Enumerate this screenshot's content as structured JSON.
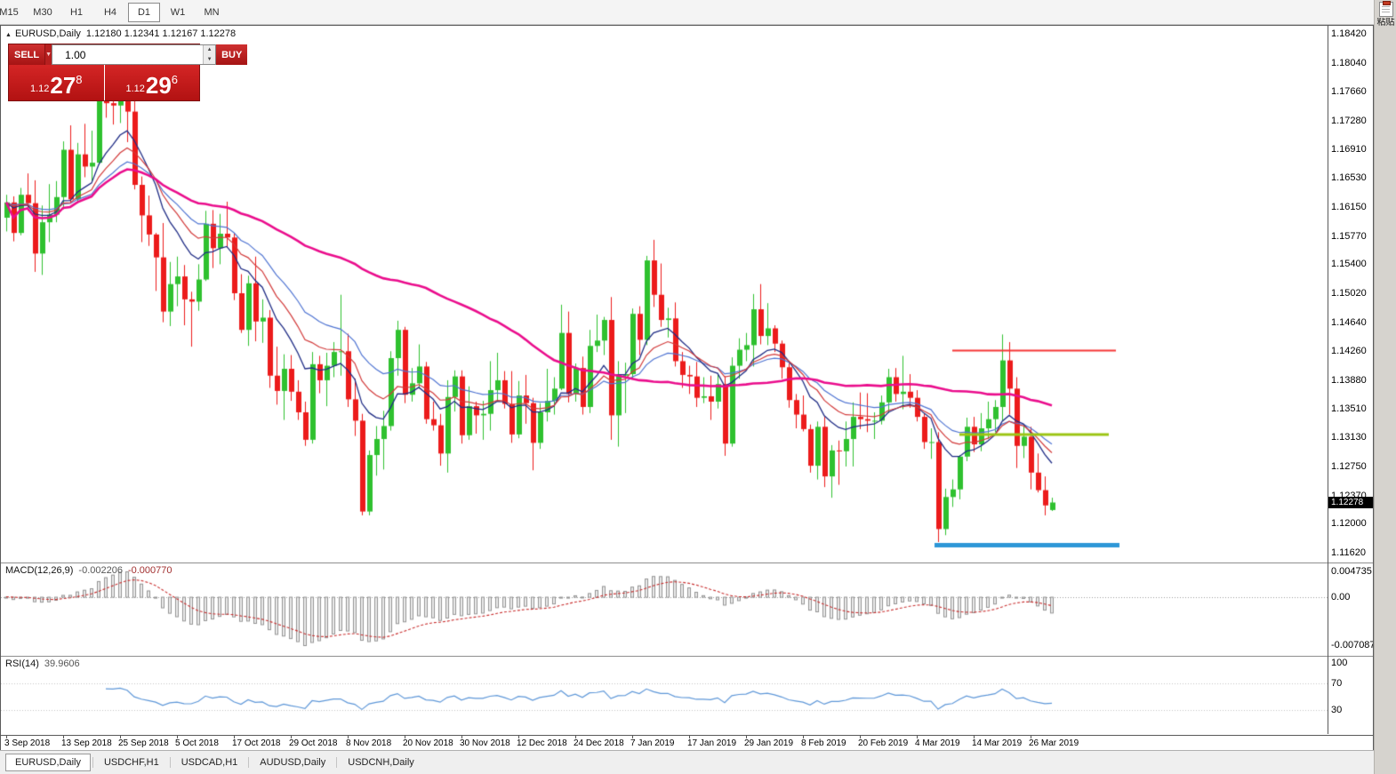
{
  "toolbar": {
    "timeframes": [
      "M15",
      "M30",
      "H1",
      "H4",
      "D1",
      "W1",
      "MN"
    ],
    "active": "D1"
  },
  "right_strip": {
    "paste_label": "粘贴"
  },
  "chart_header": {
    "symbol_period": "EURUSD,Daily",
    "ohlc": "1.12180 1.12341 1.12167 1.12278"
  },
  "trade_panel": {
    "sell_label": "SELL",
    "buy_label": "BUY",
    "volume": "1.00",
    "sell_price_prefix": "1.12",
    "sell_price_big": "27",
    "sell_price_sup": "8",
    "buy_price_prefix": "1.12",
    "buy_price_big": "29",
    "buy_price_sup": "6"
  },
  "indicators": {
    "macd": {
      "title": "MACD(12,26,9)",
      "value": "-0.002206",
      "signal": "-0.000770",
      "scale_labels": [
        "0.004735",
        "0.00",
        "-0.007087"
      ]
    },
    "rsi": {
      "title": "RSI(14)",
      "value": "39.9606",
      "scale_labels": [
        "100",
        "70",
        "30"
      ],
      "levels": [
        70,
        30
      ]
    }
  },
  "price_scale_labels": [
    "1.18420",
    "1.18040",
    "1.17660",
    "1.17280",
    "1.16910",
    "1.16530",
    "1.16150",
    "1.15770",
    "1.15400",
    "1.15020",
    "1.14640",
    "1.14260",
    "1.13880",
    "1.13510",
    "1.13130",
    "1.12750",
    "1.12370",
    "1.12000",
    "1.11620"
  ],
  "current_price_marker": {
    "label": "1.12278",
    "price": 1.12278
  },
  "date_labels": [
    {
      "text": "3 Sep 2018",
      "bar": 0
    },
    {
      "text": "13 Sep 2018",
      "bar": 8
    },
    {
      "text": "25 Sep 2018",
      "bar": 16
    },
    {
      "text": "5 Oct 2018",
      "bar": 24
    },
    {
      "text": "17 Oct 2018",
      "bar": 32
    },
    {
      "text": "29 Oct 2018",
      "bar": 40
    },
    {
      "text": "8 Nov 2018",
      "bar": 48
    },
    {
      "text": "20 Nov 2018",
      "bar": 56
    },
    {
      "text": "30 Nov 2018",
      "bar": 64
    },
    {
      "text": "12 Dec 2018",
      "bar": 72
    },
    {
      "text": "24 Dec 2018",
      "bar": 80
    },
    {
      "text": "7 Jan 2019",
      "bar": 88
    },
    {
      "text": "17 Jan 2019",
      "bar": 96
    },
    {
      "text": "29 Jan 2019",
      "bar": 104
    },
    {
      "text": "8 Feb 2019",
      "bar": 112
    },
    {
      "text": "20 Feb 2019",
      "bar": 120
    },
    {
      "text": "4 Mar 2019",
      "bar": 128
    },
    {
      "text": "14 Mar 2019",
      "bar": 136
    },
    {
      "text": "26 Mar 2019",
      "bar": 144
    }
  ],
  "tabs": [
    {
      "label": "EURUSD,Daily",
      "active": true
    },
    {
      "label": "USDCHF,H1",
      "active": false
    },
    {
      "label": "USDCAD,H1",
      "active": false
    },
    {
      "label": "AUDUSD,Daily",
      "active": false
    },
    {
      "label": "USDCNH,Daily",
      "active": false
    }
  ],
  "chart_data": {
    "type": "candlestick",
    "symbol": "EURUSD",
    "timeframe": "Daily",
    "price_axis": {
      "max": 1.1842,
      "min": 1.1162,
      "tick_step": 0.0038
    },
    "colors": {
      "up": "#2fc12f",
      "down": "#ec1b1b"
    },
    "candles": [
      [
        1.1601,
        1.1631,
        1.1583,
        1.1621
      ],
      [
        1.1621,
        1.1629,
        1.157,
        1.1581
      ],
      [
        1.1581,
        1.164,
        1.1578,
        1.1631
      ],
      [
        1.1631,
        1.1659,
        1.161,
        1.162
      ],
      [
        1.162,
        1.165,
        1.153,
        1.1554
      ],
      [
        1.1554,
        1.1617,
        1.1526,
        1.1595
      ],
      [
        1.1595,
        1.1645,
        1.1569,
        1.1605
      ],
      [
        1.1605,
        1.1649,
        1.1595,
        1.1628
      ],
      [
        1.1628,
        1.1701,
        1.1612,
        1.169
      ],
      [
        1.169,
        1.1722,
        1.162,
        1.1625
      ],
      [
        1.1625,
        1.1699,
        1.162,
        1.1684
      ],
      [
        1.1684,
        1.1724,
        1.1654,
        1.1668
      ],
      [
        1.1668,
        1.1715,
        1.1649,
        1.1673
      ],
      [
        1.1673,
        1.1785,
        1.167,
        1.1779
      ],
      [
        1.1779,
        1.1804,
        1.1732,
        1.1751
      ],
      [
        1.1751,
        1.1815,
        1.1723,
        1.1748
      ],
      [
        1.1748,
        1.1789,
        1.1725,
        1.1766
      ],
      [
        1.1766,
        1.1798,
        1.17,
        1.174
      ],
      [
        1.174,
        1.1755,
        1.1638,
        1.1644
      ],
      [
        1.1644,
        1.1655,
        1.1569,
        1.1604
      ],
      [
        1.1604,
        1.163,
        1.1564,
        1.1579
      ],
      [
        1.1579,
        1.1581,
        1.1505,
        1.1549
      ],
      [
        1.1549,
        1.1594,
        1.1464,
        1.1478
      ],
      [
        1.1478,
        1.1543,
        1.1459,
        1.1514
      ],
      [
        1.1514,
        1.155,
        1.1485,
        1.1524
      ],
      [
        1.1524,
        1.1539,
        1.146,
        1.1494
      ],
      [
        1.1494,
        1.1504,
        1.1432,
        1.1491
      ],
      [
        1.1491,
        1.154,
        1.1479,
        1.152
      ],
      [
        1.152,
        1.161,
        1.1518,
        1.1593
      ],
      [
        1.1593,
        1.1611,
        1.1535,
        1.1561
      ],
      [
        1.1561,
        1.1606,
        1.154,
        1.158
      ],
      [
        1.158,
        1.1622,
        1.1562,
        1.1575
      ],
      [
        1.1575,
        1.1581,
        1.1493,
        1.1502
      ],
      [
        1.1502,
        1.1527,
        1.145,
        1.1454
      ],
      [
        1.1454,
        1.1525,
        1.1433,
        1.1515
      ],
      [
        1.1515,
        1.155,
        1.1439,
        1.1465
      ],
      [
        1.1465,
        1.1494,
        1.1437,
        1.147
      ],
      [
        1.147,
        1.148,
        1.1378,
        1.1394
      ],
      [
        1.1394,
        1.1432,
        1.1356,
        1.1374
      ],
      [
        1.1374,
        1.1422,
        1.1336,
        1.1403
      ],
      [
        1.1403,
        1.1421,
        1.1361,
        1.1373
      ],
      [
        1.1373,
        1.1388,
        1.1336,
        1.1346
      ],
      [
        1.1346,
        1.136,
        1.1302,
        1.131
      ],
      [
        1.131,
        1.1425,
        1.1305,
        1.1409
      ],
      [
        1.1409,
        1.142,
        1.1371,
        1.1388
      ],
      [
        1.1388,
        1.1424,
        1.1354,
        1.1407
      ],
      [
        1.1407,
        1.1438,
        1.1392,
        1.1425
      ],
      [
        1.1425,
        1.15,
        1.1394,
        1.1426
      ],
      [
        1.1426,
        1.1449,
        1.1353,
        1.1363
      ],
      [
        1.1363,
        1.139,
        1.1315,
        1.1335
      ],
      [
        1.1335,
        1.1344,
        1.1211,
        1.1216
      ],
      [
        1.1216,
        1.1296,
        1.1211,
        1.129
      ],
      [
        1.129,
        1.1328,
        1.1263,
        1.1311
      ],
      [
        1.1311,
        1.1348,
        1.1271,
        1.1328
      ],
      [
        1.1328,
        1.1426,
        1.1322,
        1.1417
      ],
      [
        1.1417,
        1.1466,
        1.1394,
        1.1454
      ],
      [
        1.1454,
        1.1458,
        1.1358,
        1.1369
      ],
      [
        1.1369,
        1.1404,
        1.136,
        1.1384
      ],
      [
        1.1384,
        1.1435,
        1.1377,
        1.1406
      ],
      [
        1.1406,
        1.1412,
        1.1331,
        1.1337
      ],
      [
        1.1337,
        1.136,
        1.1322,
        1.1329
      ],
      [
        1.1329,
        1.1344,
        1.1276,
        1.1292
      ],
      [
        1.1292,
        1.1388,
        1.1267,
        1.1366
      ],
      [
        1.1366,
        1.1401,
        1.1347,
        1.1393
      ],
      [
        1.1393,
        1.1401,
        1.1305,
        1.1316
      ],
      [
        1.1316,
        1.138,
        1.131,
        1.1354
      ],
      [
        1.1354,
        1.136,
        1.1318,
        1.1342
      ],
      [
        1.1342,
        1.1361,
        1.131,
        1.1344
      ],
      [
        1.1344,
        1.1413,
        1.1322,
        1.1375
      ],
      [
        1.1375,
        1.1424,
        1.136,
        1.1388
      ],
      [
        1.1388,
        1.14,
        1.1351,
        1.1357
      ],
      [
        1.1357,
        1.14,
        1.1306,
        1.1317
      ],
      [
        1.1317,
        1.1387,
        1.1312,
        1.1368
      ],
      [
        1.1368,
        1.1395,
        1.1331,
        1.1358
      ],
      [
        1.1358,
        1.1365,
        1.127,
        1.1306
      ],
      [
        1.1306,
        1.1358,
        1.1298,
        1.1346
      ],
      [
        1.1346,
        1.1403,
        1.1334,
        1.1361
      ],
      [
        1.1361,
        1.1392,
        1.1343,
        1.1377
      ],
      [
        1.1377,
        1.1487,
        1.1375,
        1.145
      ],
      [
        1.145,
        1.1478,
        1.1359,
        1.137
      ],
      [
        1.137,
        1.141,
        1.136,
        1.1404
      ],
      [
        1.1404,
        1.1419,
        1.1343,
        1.1353
      ],
      [
        1.1353,
        1.1454,
        1.1345,
        1.1433
      ],
      [
        1.1433,
        1.1474,
        1.1425,
        1.144
      ],
      [
        1.144,
        1.1471,
        1.1421,
        1.1467
      ],
      [
        1.1467,
        1.1497,
        1.131,
        1.1342
      ],
      [
        1.1342,
        1.1413,
        1.1301,
        1.1394
      ],
      [
        1.1394,
        1.1411,
        1.1345,
        1.1396
      ],
      [
        1.1396,
        1.1482,
        1.139,
        1.1475
      ],
      [
        1.1475,
        1.1485,
        1.1421,
        1.1441
      ],
      [
        1.1441,
        1.1551,
        1.1434,
        1.1545
      ],
      [
        1.1545,
        1.1572,
        1.1484,
        1.15
      ],
      [
        1.15,
        1.1541,
        1.1458,
        1.1467
      ],
      [
        1.1467,
        1.1483,
        1.1444,
        1.1469
      ],
      [
        1.1469,
        1.149,
        1.1406,
        1.1413
      ],
      [
        1.1413,
        1.1425,
        1.1378,
        1.1395
      ],
      [
        1.1395,
        1.1407,
        1.137,
        1.1393
      ],
      [
        1.1393,
        1.1412,
        1.1353,
        1.1365
      ],
      [
        1.1365,
        1.1392,
        1.1358,
        1.1367
      ],
      [
        1.1367,
        1.1394,
        1.1336,
        1.136
      ],
      [
        1.136,
        1.1395,
        1.1351,
        1.1383
      ],
      [
        1.1383,
        1.1393,
        1.1289,
        1.1305
      ],
      [
        1.1305,
        1.1418,
        1.1301,
        1.1407
      ],
      [
        1.1407,
        1.1443,
        1.139,
        1.1428
      ],
      [
        1.1428,
        1.145,
        1.1413,
        1.1434
      ],
      [
        1.1434,
        1.1501,
        1.1406,
        1.1481
      ],
      [
        1.1481,
        1.1514,
        1.1435,
        1.1446
      ],
      [
        1.1446,
        1.1489,
        1.1434,
        1.1456
      ],
      [
        1.1456,
        1.146,
        1.1425,
        1.1436
      ],
      [
        1.1436,
        1.144,
        1.139,
        1.1405
      ],
      [
        1.1405,
        1.141,
        1.1352,
        1.1362
      ],
      [
        1.1362,
        1.137,
        1.1325,
        1.1343
      ],
      [
        1.1343,
        1.1368,
        1.1321,
        1.1324
      ],
      [
        1.1324,
        1.133,
        1.1267,
        1.1276
      ],
      [
        1.1276,
        1.1334,
        1.1258,
        1.1327
      ],
      [
        1.1327,
        1.134,
        1.1248,
        1.1262
      ],
      [
        1.1262,
        1.1303,
        1.1234,
        1.1296
      ],
      [
        1.1296,
        1.1309,
        1.1251,
        1.1295
      ],
      [
        1.1295,
        1.1334,
        1.1275,
        1.1311
      ],
      [
        1.1311,
        1.1359,
        1.1275,
        1.134
      ],
      [
        1.134,
        1.1372,
        1.1324,
        1.1337
      ],
      [
        1.1337,
        1.1371,
        1.132,
        1.1335
      ],
      [
        1.1335,
        1.1346,
        1.1311,
        1.1335
      ],
      [
        1.1335,
        1.1368,
        1.133,
        1.1359
      ],
      [
        1.1359,
        1.1403,
        1.1345,
        1.1392
      ],
      [
        1.1392,
        1.1404,
        1.136,
        1.137
      ],
      [
        1.137,
        1.142,
        1.135,
        1.1373
      ],
      [
        1.1373,
        1.1396,
        1.1352,
        1.1365
      ],
      [
        1.1365,
        1.1375,
        1.1334,
        1.134
      ],
      [
        1.134,
        1.1344,
        1.1298,
        1.1307
      ],
      [
        1.1307,
        1.1325,
        1.1285,
        1.1307
      ],
      [
        1.1307,
        1.132,
        1.1176,
        1.1193
      ],
      [
        1.1193,
        1.1246,
        1.1185,
        1.1235
      ],
      [
        1.1235,
        1.1258,
        1.1222,
        1.1245
      ],
      [
        1.1245,
        1.129,
        1.1232,
        1.1288
      ],
      [
        1.1288,
        1.1339,
        1.1282,
        1.1327
      ],
      [
        1.1327,
        1.134,
        1.1294,
        1.1304
      ],
      [
        1.1304,
        1.1345,
        1.1295,
        1.1325
      ],
      [
        1.1325,
        1.136,
        1.1311,
        1.1337
      ],
      [
        1.1337,
        1.1362,
        1.132,
        1.1353
      ],
      [
        1.1353,
        1.1448,
        1.1335,
        1.1414
      ],
      [
        1.1414,
        1.1438,
        1.1343,
        1.1377
      ],
      [
        1.1377,
        1.1392,
        1.1273,
        1.1302
      ],
      [
        1.1302,
        1.133,
        1.1286,
        1.1314
      ],
      [
        1.1314,
        1.1327,
        1.1245,
        1.1267
      ],
      [
        1.1267,
        1.1292,
        1.1241,
        1.1244
      ],
      [
        1.1244,
        1.1262,
        1.1211,
        1.1224
      ],
      [
        1.1218,
        1.12341,
        1.12167,
        1.12278
      ]
    ],
    "overlays": [
      {
        "name": "ma-medium-blue",
        "method": "ema",
        "period": 24,
        "color": "#4f74d2",
        "width": 1.2
      },
      {
        "name": "ma-fast-navy",
        "method": "ema",
        "period": 10,
        "color": "#1f2c85",
        "width": 1.3
      },
      {
        "name": "ma-red",
        "method": "ema",
        "period": 16,
        "color": "#d23a3a",
        "width": 1.2
      },
      {
        "name": "ma-slow-magenta",
        "method": "sma",
        "period": 60,
        "color": "#ea0d8c",
        "width": 2.6
      }
    ],
    "objects": [
      {
        "name": "resistance-hline",
        "type": "hline",
        "price": 1.1427,
        "bar_start": 133,
        "bar_end": 156,
        "color": "#f63535",
        "width": 2
      },
      {
        "name": "pivot-hline",
        "type": "hline",
        "price": 1.1317,
        "bar_start": 134,
        "bar_end": 155,
        "color": "#9cc414",
        "width": 3
      },
      {
        "name": "support-hline",
        "type": "hline",
        "price": 1.1172,
        "bar_start": 130.5,
        "bar_end": 156.5,
        "color": "#2e97d7",
        "width": 5
      }
    ]
  }
}
